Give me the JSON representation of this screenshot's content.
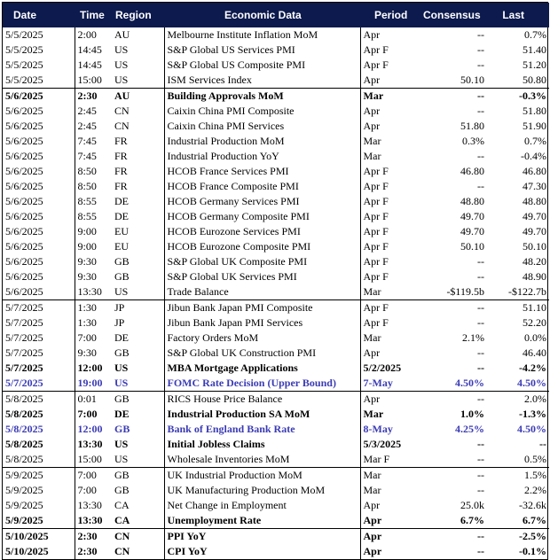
{
  "headers": {
    "date": "Date",
    "time": "Time",
    "region": "Region",
    "econ": "Economic Data",
    "period": "Period",
    "consensus": "Consensus",
    "last": "Last"
  },
  "rows": [
    {
      "date": "5/5/2025",
      "time": "2:00",
      "region": "AU",
      "econ": "Melbourne Institute Inflation MoM",
      "period": "Apr",
      "consensus": "--",
      "last": "0.7%",
      "style": "normal",
      "sep": false
    },
    {
      "date": "5/5/2025",
      "time": "14:45",
      "region": "US",
      "econ": "S&P Global US Services PMI",
      "period": "Apr F",
      "consensus": "--",
      "last": "51.40",
      "style": "normal",
      "sep": false
    },
    {
      "date": "5/5/2025",
      "time": "14:45",
      "region": "US",
      "econ": "S&P Global US Composite PMI",
      "period": "Apr F",
      "consensus": "--",
      "last": "51.20",
      "style": "normal",
      "sep": false
    },
    {
      "date": "5/5/2025",
      "time": "15:00",
      "region": "US",
      "econ": "ISM Services Index",
      "period": "Apr",
      "consensus": "50.10",
      "last": "50.80",
      "style": "normal",
      "sep": false
    },
    {
      "date": "5/6/2025",
      "time": "2:30",
      "region": "AU",
      "econ": "Building Approvals MoM",
      "period": "Mar",
      "consensus": "--",
      "last": "-0.3%",
      "style": "bold",
      "sep": true
    },
    {
      "date": "5/6/2025",
      "time": "2:45",
      "region": "CN",
      "econ": "Caixin China PMI Composite",
      "period": "Apr",
      "consensus": "--",
      "last": "51.80",
      "style": "normal",
      "sep": false
    },
    {
      "date": "5/6/2025",
      "time": "2:45",
      "region": "CN",
      "econ": "Caixin China PMI Services",
      "period": "Apr",
      "consensus": "51.80",
      "last": "51.90",
      "style": "normal",
      "sep": false
    },
    {
      "date": "5/6/2025",
      "time": "7:45",
      "region": "FR",
      "econ": "Industrial Production MoM",
      "period": "Mar",
      "consensus": "0.3%",
      "last": "0.7%",
      "style": "normal",
      "sep": false
    },
    {
      "date": "5/6/2025",
      "time": "7:45",
      "region": "FR",
      "econ": "Industrial Production YoY",
      "period": "Mar",
      "consensus": "--",
      "last": "-0.4%",
      "style": "normal",
      "sep": false
    },
    {
      "date": "5/6/2025",
      "time": "8:50",
      "region": "FR",
      "econ": "HCOB France Services PMI",
      "period": "Apr F",
      "consensus": "46.80",
      "last": "46.80",
      "style": "normal",
      "sep": false
    },
    {
      "date": "5/6/2025",
      "time": "8:50",
      "region": "FR",
      "econ": "HCOB France Composite PMI",
      "period": "Apr F",
      "consensus": "--",
      "last": "47.30",
      "style": "normal",
      "sep": false
    },
    {
      "date": "5/6/2025",
      "time": "8:55",
      "region": "DE",
      "econ": "HCOB Germany Services PMI",
      "period": "Apr F",
      "consensus": "48.80",
      "last": "48.80",
      "style": "normal",
      "sep": false
    },
    {
      "date": "5/6/2025",
      "time": "8:55",
      "region": "DE",
      "econ": "HCOB Germany Composite PMI",
      "period": "Apr F",
      "consensus": "49.70",
      "last": "49.70",
      "style": "normal",
      "sep": false
    },
    {
      "date": "5/6/2025",
      "time": "9:00",
      "region": "EU",
      "econ": "HCOB Eurozone Services PMI",
      "period": "Apr F",
      "consensus": "49.70",
      "last": "49.70",
      "style": "normal",
      "sep": false
    },
    {
      "date": "5/6/2025",
      "time": "9:00",
      "region": "EU",
      "econ": "HCOB Eurozone Composite PMI",
      "period": "Apr F",
      "consensus": "50.10",
      "last": "50.10",
      "style": "normal",
      "sep": false
    },
    {
      "date": "5/6/2025",
      "time": "9:30",
      "region": "GB",
      "econ": "S&P Global UK Composite PMI",
      "period": "Apr F",
      "consensus": "--",
      "last": "48.20",
      "style": "normal",
      "sep": false
    },
    {
      "date": "5/6/2025",
      "time": "9:30",
      "region": "GB",
      "econ": "S&P Global UK Services PMI",
      "period": "Apr F",
      "consensus": "--",
      "last": "48.90",
      "style": "normal",
      "sep": false
    },
    {
      "date": "5/6/2025",
      "time": "13:30",
      "region": "US",
      "econ": "Trade Balance",
      "period": "Mar",
      "consensus": "-$119.5b",
      "last": "-$122.7b",
      "style": "normal",
      "sep": false
    },
    {
      "date": "5/7/2025",
      "time": "1:30",
      "region": "JP",
      "econ": "Jibun Bank Japan PMI Composite",
      "period": "Apr F",
      "consensus": "--",
      "last": "51.10",
      "style": "normal",
      "sep": true
    },
    {
      "date": "5/7/2025",
      "time": "1:30",
      "region": "JP",
      "econ": "Jibun Bank Japan PMI Services",
      "period": "Apr F",
      "consensus": "--",
      "last": "52.20",
      "style": "normal",
      "sep": false
    },
    {
      "date": "5/7/2025",
      "time": "7:00",
      "region": "DE",
      "econ": "Factory Orders MoM",
      "period": "Mar",
      "consensus": "2.1%",
      "last": "0.0%",
      "style": "normal",
      "sep": false
    },
    {
      "date": "5/7/2025",
      "time": "9:30",
      "region": "GB",
      "econ": "S&P Global UK Construction PMI",
      "period": "Apr",
      "consensus": "--",
      "last": "46.40",
      "style": "normal",
      "sep": false
    },
    {
      "date": "5/7/2025",
      "time": "12:00",
      "region": "US",
      "econ": "MBA Mortgage Applications",
      "period": "5/2/2025",
      "consensus": "--",
      "last": "-4.2%",
      "style": "bold",
      "sep": false
    },
    {
      "date": "5/7/2025",
      "time": "19:00",
      "region": "US",
      "econ": "FOMC Rate Decision (Upper Bound)",
      "period": "7-May",
      "consensus": "4.50%",
      "last": "4.50%",
      "style": "hl",
      "sep": false
    },
    {
      "date": "5/8/2025",
      "time": "0:01",
      "region": "GB",
      "econ": "RICS House Price Balance",
      "period": "Apr",
      "consensus": "--",
      "last": "2.0%",
      "style": "normal",
      "sep": true
    },
    {
      "date": "5/8/2025",
      "time": "7:00",
      "region": "DE",
      "econ": "Industrial Production SA MoM",
      "period": "Mar",
      "consensus": "1.0%",
      "last": "-1.3%",
      "style": "bold",
      "sep": false
    },
    {
      "date": "5/8/2025",
      "time": "12:00",
      "region": "GB",
      "econ": "Bank of England Bank Rate",
      "period": "8-May",
      "consensus": "4.25%",
      "last": "4.50%",
      "style": "hl",
      "sep": false
    },
    {
      "date": "5/8/2025",
      "time": "13:30",
      "region": "US",
      "econ": "Initial Jobless Claims",
      "period": "5/3/2025",
      "consensus": "--",
      "last": "--",
      "style": "bold",
      "sep": false
    },
    {
      "date": "5/8/2025",
      "time": "15:00",
      "region": "US",
      "econ": "Wholesale Inventories MoM",
      "period": "Mar F",
      "consensus": "--",
      "last": "0.5%",
      "style": "normal",
      "sep": false
    },
    {
      "date": "5/9/2025",
      "time": "7:00",
      "region": "GB",
      "econ": "UK Industrial Production MoM",
      "period": "Mar",
      "consensus": "--",
      "last": "1.5%",
      "style": "normal",
      "sep": true
    },
    {
      "date": "5/9/2025",
      "time": "7:00",
      "region": "GB",
      "econ": "UK Manufacturing Production MoM",
      "period": "Mar",
      "consensus": "--",
      "last": "2.2%",
      "style": "normal",
      "sep": false
    },
    {
      "date": "5/9/2025",
      "time": "13:30",
      "region": "CA",
      "econ": "Net Change in Employment",
      "period": "Apr",
      "consensus": "25.0k",
      "last": "-32.6k",
      "style": "normal",
      "sep": false
    },
    {
      "date": "5/9/2025",
      "time": "13:30",
      "region": "CA",
      "econ": "Unemployment Rate",
      "period": "Apr",
      "consensus": "6.7%",
      "last": "6.7%",
      "style": "bold",
      "sep": false
    },
    {
      "date": "5/10/2025",
      "time": "2:30",
      "region": "CN",
      "econ": "PPI YoY",
      "period": "Apr",
      "consensus": "--",
      "last": "-2.5%",
      "style": "bold",
      "sep": true
    },
    {
      "date": "5/10/2025",
      "time": "2:30",
      "region": "CN",
      "econ": "CPI YoY",
      "period": "Apr",
      "consensus": "--",
      "last": "-0.1%",
      "style": "bold",
      "sep": false
    }
  ],
  "colors": {
    "header_bg": "#0d1a4d",
    "header_text": "#ffffff",
    "highlight_text": "#3b3bb5"
  }
}
